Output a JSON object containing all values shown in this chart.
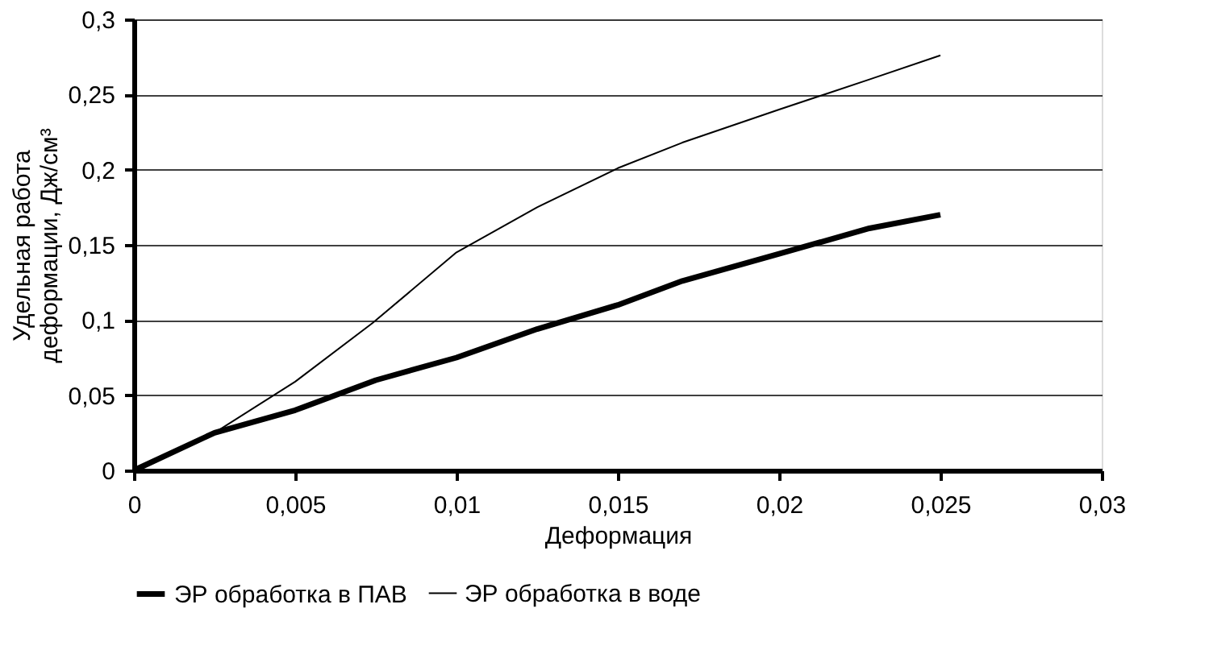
{
  "chart_data": {
    "type": "line",
    "xlabel": "Деформация",
    "ylabel": "Удельная работа\nдеформации, Дж/см³",
    "xlim": [
      0,
      0.03
    ],
    "xticks": [
      {
        "value": 0,
        "label": "0"
      },
      {
        "value": 0.005,
        "label": "0,005"
      },
      {
        "value": 0.01,
        "label": "0,01"
      },
      {
        "value": 0.015,
        "label": "0,015"
      },
      {
        "value": 0.02,
        "label": "0,02"
      },
      {
        "value": 0.025,
        "label": "0,025"
      },
      {
        "value": 0.03,
        "label": "0,03"
      }
    ],
    "ylim": [
      0,
      0.3
    ],
    "yticks": [
      {
        "value": 0,
        "label": "0"
      },
      {
        "value": 0.05,
        "label": "0,05"
      },
      {
        "value": 0.1,
        "label": "0,1"
      },
      {
        "value": 0.15,
        "label": "0,15"
      },
      {
        "value": 0.2,
        "label": "0,2"
      },
      {
        "value": 0.25,
        "label": "0,25"
      },
      {
        "value": 0.3,
        "label": "0,3"
      }
    ],
    "grid": "y",
    "legend": "bottom",
    "marker": "none",
    "line_style": "solid",
    "series": [
      {
        "name": "ЭР обработка в ПАВ",
        "color": "#000000",
        "x": [
          0,
          0.0025,
          0.005,
          0.0075,
          0.01,
          0.0125,
          0.015,
          0.017,
          0.02,
          0.0228,
          0.025
        ],
        "values": [
          0,
          0.025,
          0.04,
          0.06,
          0.075,
          0.094,
          0.11,
          0.126,
          0.144,
          0.161,
          0.17
        ]
      },
      {
        "name": "ЭР обработка в воде",
        "color": "#000000",
        "x": [
          0,
          0.0025,
          0.005,
          0.0074,
          0.01,
          0.0125,
          0.015,
          0.017,
          0.02,
          0.0228,
          0.025
        ],
        "values": [
          0,
          0.025,
          0.059,
          0.098,
          0.145,
          0.175,
          0.201,
          0.218,
          0.24,
          0.26,
          0.276
        ]
      }
    ]
  }
}
